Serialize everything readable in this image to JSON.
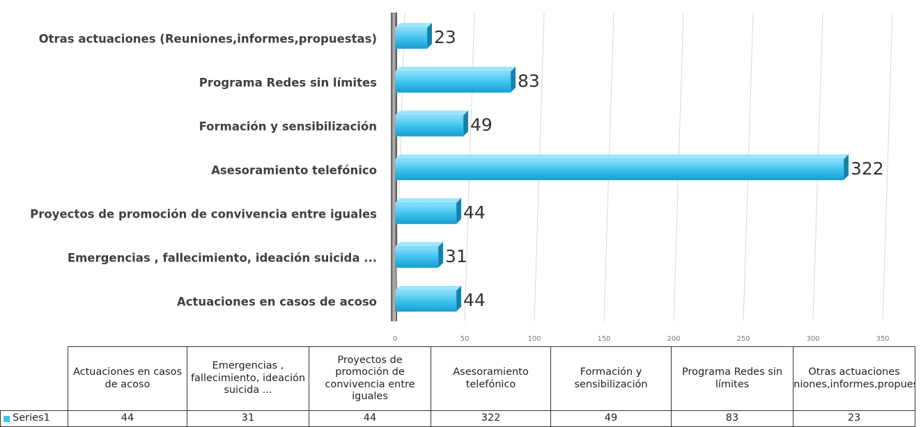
{
  "chart_data": {
    "type": "bar",
    "orientation": "horizontal",
    "categories": [
      "Actuaciones en casos de acoso",
      "Emergencias , fallecimiento, ideación suicida ...",
      "Proyectos de promoción de convivencia entre iguales",
      "Asesoramiento telefónico",
      "Formación y sensibilización",
      "Programa Redes sin límites",
      "Otras  actuaciones (Reuniones,informes,propuestas)"
    ],
    "series": [
      {
        "name": "Series1",
        "color": "#3ec3ee",
        "values": [
          44,
          31,
          44,
          322,
          49,
          83,
          23
        ]
      }
    ],
    "xlim": [
      0,
      350
    ],
    "xticks": [
      0,
      50,
      100,
      150,
      200,
      250,
      300,
      350
    ],
    "grid": true,
    "data_table": true
  }
}
